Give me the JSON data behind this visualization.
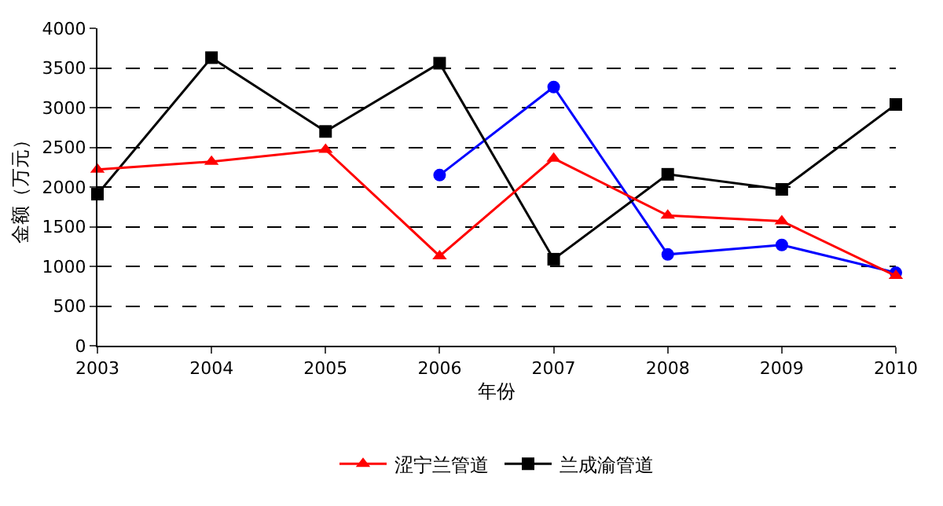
{
  "chart_data": {
    "type": "line",
    "xlabel": "年份",
    "ylabel": "金额（万元）",
    "x": [
      2003,
      2004,
      2005,
      2006,
      2007,
      2008,
      2009,
      2010
    ],
    "series": [
      {
        "name": "涩宁兰管道",
        "color": "#ff0000",
        "marker": "triangle",
        "values": [
          2220,
          2320,
          2470,
          1130,
          2360,
          1640,
          1570,
          880
        ]
      },
      {
        "name": "兰成渝管道",
        "color": "#000000",
        "marker": "square",
        "values": [
          1910,
          3630,
          2700,
          3560,
          1090,
          2160,
          1970,
          3040
        ]
      },
      {
        "color": "#0000ff",
        "marker": "circle",
        "values": [
          null,
          null,
          null,
          2150,
          3260,
          1150,
          1270,
          920
        ]
      }
    ],
    "xlim": [
      2003,
      2010
    ],
    "xticks": [
      2003,
      2004,
      2005,
      2006,
      2007,
      2008,
      2009,
      2010
    ],
    "ylim": [
      0,
      4000
    ],
    "yticks": [
      0,
      500,
      1000,
      1500,
      2000,
      2500,
      3000,
      3500,
      4000
    ],
    "grid": "y",
    "legend": "bottom",
    "line_style": "solid"
  }
}
